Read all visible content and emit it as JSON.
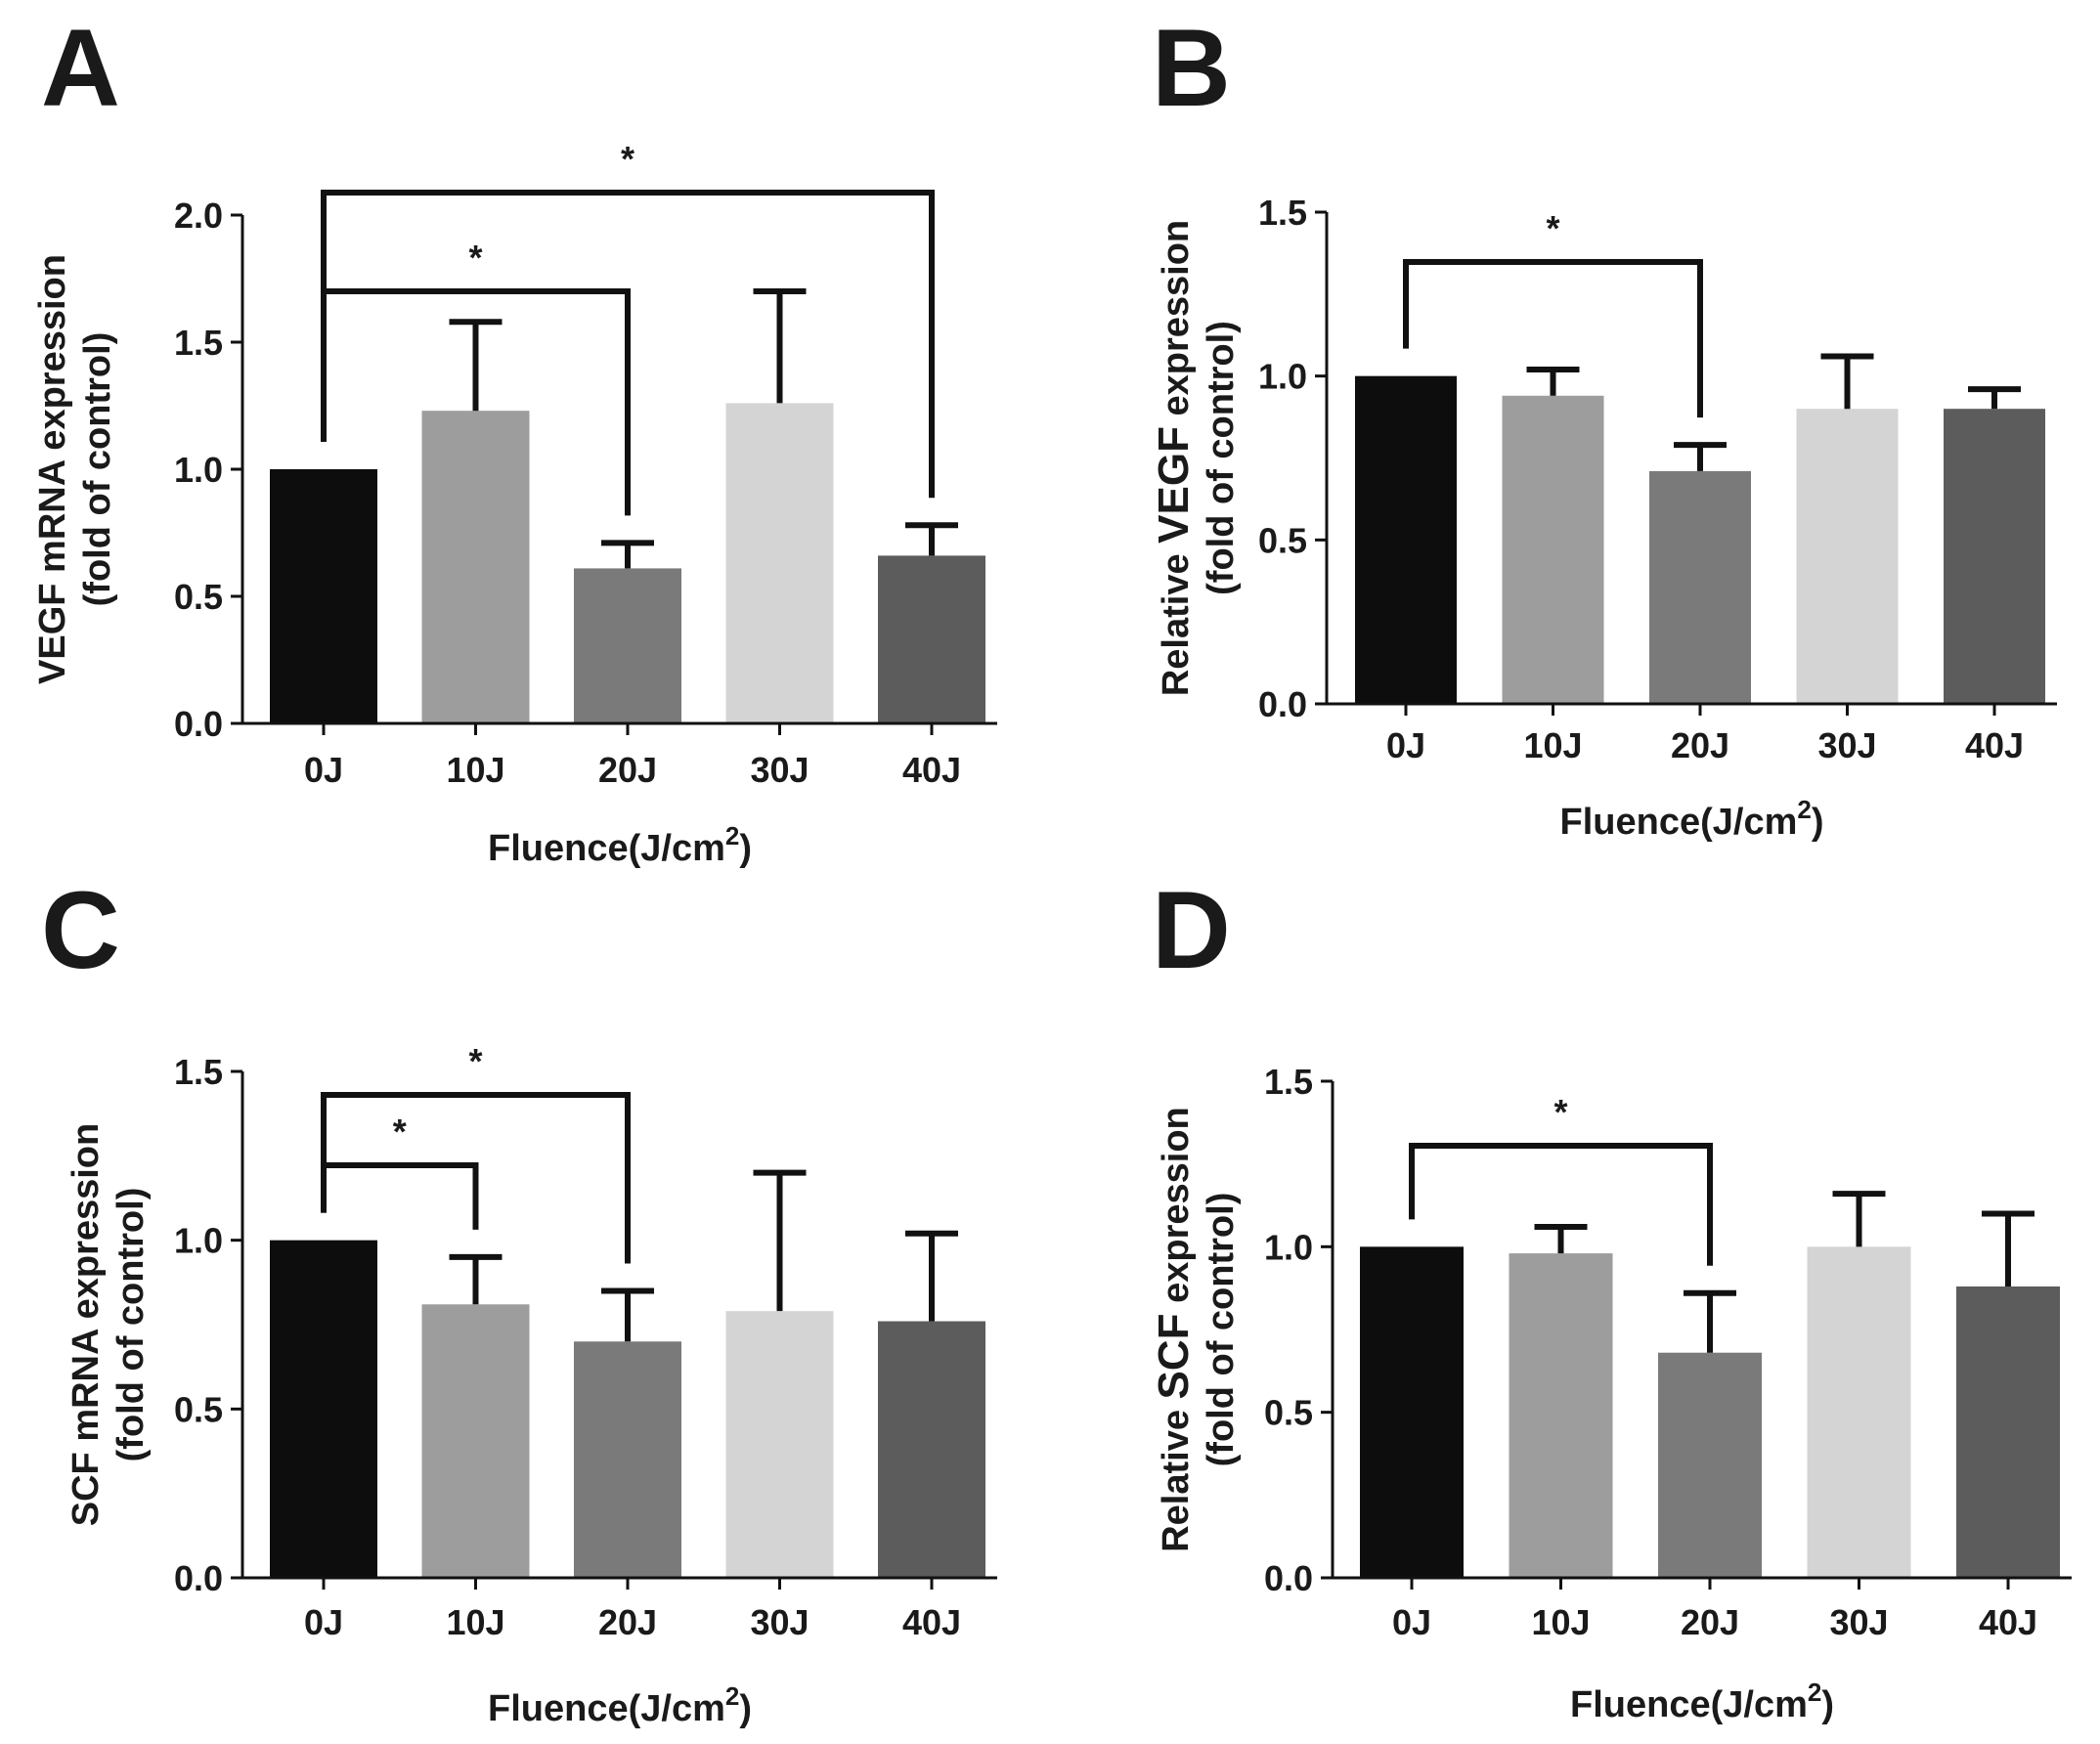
{
  "figure": {
    "category_axis_label": "Fluence(J/cm",
    "superscript": "2",
    "closing": ")"
  },
  "chart_data": [
    {
      "panel": "A",
      "type": "bar",
      "categories": [
        "0J",
        "10J",
        "20J",
        "30J",
        "40J"
      ],
      "values": [
        1.0,
        1.23,
        0.61,
        1.26,
        0.66
      ],
      "errors": [
        0.0,
        0.35,
        0.1,
        0.44,
        0.12
      ],
      "colors": [
        "#0d0d0d",
        "#9d9d9d",
        "#7a7a7a",
        "#d4d4d4",
        "#5c5c5c"
      ],
      "ylim": [
        0,
        2.0
      ],
      "yticks": [
        "0.0",
        "0.5",
        "1.0",
        "1.5",
        "2.0"
      ],
      "ylabel_lines": [
        "VEGF mRNA expression",
        "(fold of control)"
      ],
      "xlabel": "Fluence(J/cm2)",
      "significance": [
        {
          "from": "0J",
          "to": "20J",
          "label": "*"
        },
        {
          "from": "0J",
          "to": "40J",
          "label": "*"
        }
      ]
    },
    {
      "panel": "B",
      "type": "bar",
      "categories": [
        "0J",
        "10J",
        "20J",
        "30J",
        "40J"
      ],
      "values": [
        1.0,
        0.94,
        0.71,
        0.9,
        0.9
      ],
      "errors": [
        0.0,
        0.08,
        0.08,
        0.16,
        0.06
      ],
      "colors": [
        "#0d0d0d",
        "#9d9d9d",
        "#7a7a7a",
        "#d4d4d4",
        "#5c5c5c"
      ],
      "ylim": [
        0,
        1.5
      ],
      "yticks": [
        "0.0",
        "0.5",
        "1.0",
        "1.5"
      ],
      "ylabel_prefix": "Relative ",
      "ylabel_gene": "VEGF",
      "ylabel_suffix": " expression",
      "ylabel_line2": "(fold of control)",
      "xlabel": "Fluence(J/cm2)",
      "significance": [
        {
          "from": "0J",
          "to": "20J",
          "label": "*"
        }
      ]
    },
    {
      "panel": "C",
      "type": "bar",
      "categories": [
        "0J",
        "10J",
        "20J",
        "30J",
        "40J"
      ],
      "values": [
        1.0,
        0.81,
        0.7,
        0.79,
        0.76
      ],
      "errors": [
        0.0,
        0.14,
        0.15,
        0.41,
        0.26
      ],
      "colors": [
        "#0d0d0d",
        "#9d9d9d",
        "#7a7a7a",
        "#d4d4d4",
        "#5c5c5c"
      ],
      "ylim": [
        0,
        1.5
      ],
      "yticks": [
        "0.0",
        "0.5",
        "1.0",
        "1.5"
      ],
      "ylabel_lines": [
        "SCF mRNA expression",
        "(fold of control)"
      ],
      "xlabel": "Fluence(J/cm2)",
      "significance": [
        {
          "from": "0J",
          "to": "10J",
          "label": "*"
        },
        {
          "from": "0J",
          "to": "20J",
          "label": "*"
        }
      ]
    },
    {
      "panel": "D",
      "type": "bar",
      "categories": [
        "0J",
        "10J",
        "20J",
        "30J",
        "40J"
      ],
      "values": [
        1.0,
        0.98,
        0.68,
        1.0,
        0.88
      ],
      "errors": [
        0.0,
        0.08,
        0.18,
        0.16,
        0.22
      ],
      "colors": [
        "#0d0d0d",
        "#9d9d9d",
        "#7a7a7a",
        "#d4d4d4",
        "#5c5c5c"
      ],
      "ylim": [
        0,
        1.5
      ],
      "yticks": [
        "0.0",
        "0.5",
        "1.0",
        "1.5"
      ],
      "ylabel_prefix": "Relative ",
      "ylabel_gene": "SCF",
      "ylabel_suffix": " expression",
      "ylabel_line2": "(fold of control)",
      "xlabel": "Fluence(J/cm2)",
      "significance": [
        {
          "from": "0J",
          "to": "20J",
          "label": "*"
        }
      ]
    }
  ]
}
